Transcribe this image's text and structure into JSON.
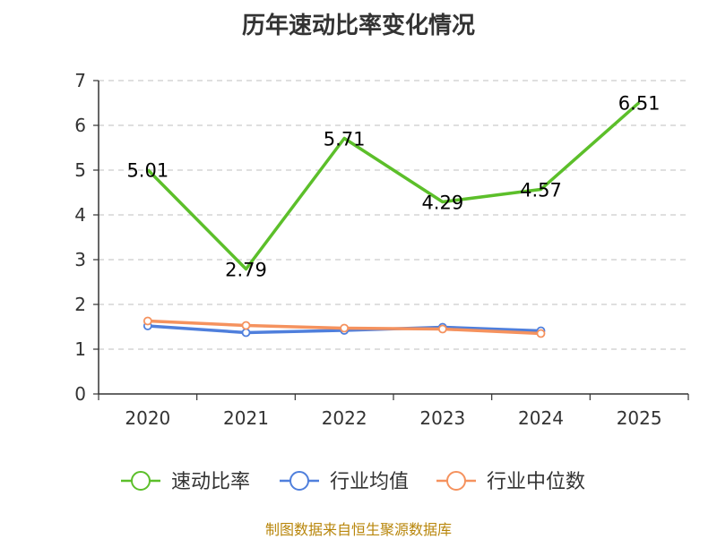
{
  "chart_data": {
    "type": "line",
    "title": "历年速动比率变化情况",
    "categories": [
      "2020",
      "2021",
      "2022",
      "2023",
      "2024",
      "2025"
    ],
    "yticks": [
      "0",
      "1",
      "2",
      "3",
      "4",
      "5",
      "6",
      "7"
    ],
    "ylim": [
      0,
      7
    ],
    "grid": true,
    "legend_position": "bottom",
    "series": [
      {
        "name": "速动比率",
        "color": "#5cbf2a",
        "values": [
          5.01,
          2.79,
          5.71,
          4.29,
          4.57,
          6.51
        ],
        "labels": [
          "5.01",
          "2.79",
          "5.71",
          "4.29",
          "4.57",
          "6.51"
        ]
      },
      {
        "name": "行业均值",
        "color": "#4f7fdc",
        "values": [
          1.52,
          1.37,
          1.42,
          1.49,
          1.41,
          null
        ]
      },
      {
        "name": "行业中位数",
        "color": "#f5925e",
        "values": [
          1.63,
          1.53,
          1.47,
          1.45,
          1.35,
          null
        ]
      }
    ]
  },
  "source": "制图数据来自恒生聚源数据库"
}
